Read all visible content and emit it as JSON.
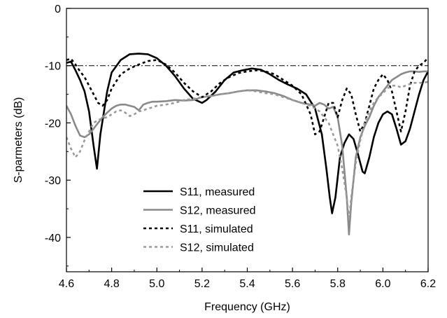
{
  "chart_data": {
    "type": "line",
    "xlabel": "Frequency (GHz)",
    "ylabel": "S-parmeters (dB)",
    "xlim": [
      4.6,
      6.2
    ],
    "ylim": [
      -46,
      0
    ],
    "xticks": [
      4.6,
      4.8,
      5.0,
      5.2,
      5.4,
      5.6,
      5.8,
      6.0,
      6.2
    ],
    "xtick_labels": [
      "4.6",
      "4.8",
      "5.0",
      "5.2",
      "5.4",
      "5.6",
      "5.8",
      "6.0",
      "6.2"
    ],
    "yticks": [
      0,
      -10,
      -20,
      -30,
      -40
    ],
    "ytick_labels": [
      "0",
      "-10",
      "-20",
      "-30",
      "-40"
    ],
    "grid": false,
    "legend_position": "bottom-left",
    "reference_line": {
      "y": -10,
      "style": "dash-dot",
      "color": "#000000"
    },
    "series": [
      {
        "name": "S11, measured",
        "color": "#000000",
        "dash": "solid",
        "x": [
          4.6,
          4.62,
          4.64,
          4.66,
          4.68,
          4.7,
          4.72,
          4.735,
          4.75,
          4.78,
          4.8,
          4.84,
          4.88,
          4.92,
          4.96,
          5.0,
          5.04,
          5.08,
          5.12,
          5.16,
          5.2,
          5.22,
          5.26,
          5.3,
          5.34,
          5.38,
          5.42,
          5.46,
          5.5,
          5.54,
          5.58,
          5.62,
          5.66,
          5.7,
          5.73,
          5.75,
          5.765,
          5.775,
          5.79,
          5.81,
          5.83,
          5.85,
          5.87,
          5.89,
          5.91,
          5.92,
          5.94,
          5.96,
          5.98,
          6.0,
          6.02,
          6.04,
          6.06,
          6.08,
          6.1,
          6.12,
          6.14,
          6.16,
          6.18,
          6.2
        ],
        "y": [
          -9.5,
          -9.3,
          -10.8,
          -12.5,
          -14.5,
          -18.0,
          -24.0,
          -28.0,
          -22.0,
          -14.5,
          -11.2,
          -9.0,
          -8.0,
          -7.9,
          -8.0,
          -8.7,
          -10.0,
          -11.8,
          -14.0,
          -15.8,
          -16.5,
          -16.0,
          -14.5,
          -12.5,
          -11.2,
          -10.8,
          -10.5,
          -10.7,
          -11.5,
          -12.5,
          -13.3,
          -14.0,
          -15.0,
          -17.5,
          -22.0,
          -28.0,
          -33.0,
          -35.8,
          -33.0,
          -26.0,
          -23.5,
          -22.0,
          -22.8,
          -25.5,
          -28.5,
          -28.8,
          -26.0,
          -22.5,
          -20.0,
          -18.5,
          -18.0,
          -18.5,
          -21.0,
          -23.8,
          -23.2,
          -21.0,
          -18.0,
          -15.0,
          -12.5,
          -11.0
        ]
      },
      {
        "name": "S12, measured",
        "color": "#8a8a8a",
        "dash": "solid",
        "x": [
          4.6,
          4.62,
          4.64,
          4.66,
          4.68,
          4.7,
          4.72,
          4.74,
          4.76,
          4.78,
          4.8,
          4.82,
          4.84,
          4.86,
          4.88,
          4.9,
          4.92,
          4.94,
          4.96,
          4.98,
          5.0,
          5.04,
          5.08,
          5.12,
          5.16,
          5.2,
          5.24,
          5.28,
          5.32,
          5.36,
          5.4,
          5.44,
          5.48,
          5.52,
          5.56,
          5.6,
          5.64,
          5.68,
          5.7,
          5.72,
          5.74,
          5.76,
          5.78,
          5.8,
          5.82,
          5.84,
          5.85,
          5.86,
          5.88,
          5.9,
          5.92,
          5.94,
          5.96,
          5.98,
          6.0,
          6.02,
          6.04,
          6.06,
          6.08,
          6.1,
          6.12,
          6.14,
          6.16,
          6.18,
          6.2
        ],
        "y": [
          -17.0,
          -18.5,
          -20.5,
          -22.2,
          -22.5,
          -22.0,
          -21.0,
          -20.0,
          -19.0,
          -18.2,
          -17.5,
          -17.0,
          -16.8,
          -16.8,
          -17.0,
          -17.2,
          -17.8,
          -16.8,
          -16.5,
          -16.3,
          -16.3,
          -16.2,
          -16.0,
          -16.1,
          -16.0,
          -15.5,
          -15.3,
          -15.0,
          -14.8,
          -14.5,
          -14.3,
          -14.3,
          -14.5,
          -14.8,
          -15.3,
          -16.0,
          -16.5,
          -16.8,
          -17.0,
          -16.5,
          -16.8,
          -17.5,
          -17.2,
          -19.0,
          -24.0,
          -33.0,
          -39.5,
          -34.0,
          -26.0,
          -22.5,
          -20.5,
          -19.0,
          -17.0,
          -15.5,
          -14.5,
          -13.5,
          -12.5,
          -12.0,
          -11.5,
          -11.2,
          -11.0,
          -11.0,
          -11.1,
          -11.0,
          -11.0
        ]
      },
      {
        "name": "S11, simulated",
        "color": "#000000",
        "dash": "dotted",
        "x": [
          4.6,
          4.62,
          4.64,
          4.66,
          4.68,
          4.7,
          4.72,
          4.74,
          4.76,
          4.78,
          4.8,
          4.84,
          4.88,
          4.92,
          4.96,
          5.0,
          5.04,
          5.08,
          5.12,
          5.16,
          5.2,
          5.24,
          5.28,
          5.32,
          5.36,
          5.4,
          5.44,
          5.48,
          5.52,
          5.56,
          5.6,
          5.64,
          5.68,
          5.7,
          5.72,
          5.74,
          5.76,
          5.78,
          5.8,
          5.82,
          5.84,
          5.86,
          5.88,
          5.9,
          5.92,
          5.94,
          5.96,
          5.98,
          6.0,
          6.02,
          6.04,
          6.06,
          6.08,
          6.1,
          6.12,
          6.14,
          6.16,
          6.18,
          6.2
        ],
        "y": [
          -9.0,
          -8.8,
          -9.8,
          -11.0,
          -12.0,
          -13.5,
          -15.0,
          -16.5,
          -17.0,
          -16.0,
          -14.0,
          -11.5,
          -10.5,
          -9.8,
          -9.2,
          -9.0,
          -9.8,
          -11.2,
          -13.0,
          -14.5,
          -15.5,
          -14.5,
          -13.0,
          -12.0,
          -11.3,
          -11.0,
          -10.8,
          -11.0,
          -11.5,
          -12.5,
          -13.5,
          -15.0,
          -18.5,
          -22.0,
          -21.5,
          -19.0,
          -16.5,
          -16.5,
          -19.0,
          -16.0,
          -14.0,
          -15.0,
          -18.5,
          -21.5,
          -20.0,
          -17.0,
          -14.0,
          -12.5,
          -11.5,
          -12.5,
          -14.5,
          -18.0,
          -21.5,
          -18.0,
          -13.5,
          -11.0,
          -10.0,
          -9.5,
          -8.6
        ]
      },
      {
        "name": "S12, simulated",
        "color": "#9a9a9a",
        "dash": "dotted",
        "x": [
          4.6,
          4.62,
          4.64,
          4.66,
          4.68,
          4.7,
          4.72,
          4.74,
          4.76,
          4.78,
          4.8,
          4.82,
          4.84,
          4.86,
          4.88,
          4.9,
          4.92,
          4.94,
          4.96,
          4.98,
          5.0,
          5.04,
          5.08,
          5.12,
          5.16,
          5.2,
          5.24,
          5.28,
          5.32,
          5.36,
          5.4,
          5.44,
          5.48,
          5.52,
          5.56,
          5.6,
          5.64,
          5.68,
          5.72,
          5.76,
          5.8,
          5.82,
          5.84,
          5.85,
          5.86,
          5.88,
          5.9,
          5.92,
          5.94,
          5.96,
          5.98,
          6.0,
          6.02,
          6.04,
          6.06,
          6.08,
          6.1,
          6.12,
          6.14,
          6.16,
          6.18,
          6.2
        ],
        "y": [
          -22.5,
          -24.5,
          -26.0,
          -25.0,
          -23.0,
          -21.5,
          -20.0,
          -19.5,
          -19.2,
          -19.0,
          -18.5,
          -18.0,
          -17.8,
          -18.2,
          -18.8,
          -18.5,
          -18.0,
          -17.8,
          -17.5,
          -17.3,
          -17.0,
          -16.8,
          -16.5,
          -16.0,
          -15.8,
          -15.5,
          -15.3,
          -15.0,
          -14.8,
          -14.5,
          -14.3,
          -14.5,
          -14.8,
          -15.0,
          -15.5,
          -16.0,
          -16.5,
          -17.0,
          -18.0,
          -20.0,
          -24.0,
          -28.0,
          -33.0,
          -37.0,
          -33.0,
          -27.0,
          -23.0,
          -20.0,
          -18.0,
          -16.5,
          -15.5,
          -14.8,
          -14.0,
          -13.5,
          -13.5,
          -13.8,
          -13.5,
          -13.2,
          -13.0,
          -13.0,
          -13.0,
          -12.8
        ]
      }
    ]
  }
}
